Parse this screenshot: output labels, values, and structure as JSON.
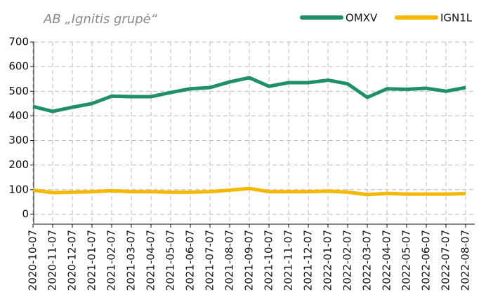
{
  "chart_data": {
    "type": "line",
    "title": "AB „Ignitis grupė“",
    "categories": [
      "2020-10-07",
      "2020-11-07",
      "2020-12-07",
      "2021-01-07",
      "2021-02-07",
      "2021-03-07",
      "2021-04-07",
      "2021-05-07",
      "2021-06-07",
      "2021-07-07",
      "2021-08-07",
      "2021-09-07",
      "2021-10-07",
      "2021-11-07",
      "2021-12-07",
      "2022-01-07",
      "2022-02-07",
      "2022-03-07",
      "2022-04-07",
      "2022-05-07",
      "2022-06-07",
      "2022-07-07",
      "2022-08-07"
    ],
    "series": [
      {
        "name": "OMXV",
        "color": "#1f8f6a",
        "values": [
          438,
          418,
          435,
          450,
          480,
          478,
          478,
          495,
          510,
          515,
          538,
          555,
          520,
          535,
          535,
          545,
          530,
          475,
          510,
          508,
          512,
          500,
          515
        ]
      },
      {
        "name": "IGN1L",
        "color": "#f5b800",
        "values": [
          98,
          88,
          90,
          92,
          96,
          92,
          92,
          90,
          90,
          92,
          98,
          105,
          92,
          92,
          92,
          94,
          90,
          80,
          85,
          82,
          82,
          82,
          84
        ]
      }
    ],
    "ylim": [
      -40,
      700
    ],
    "yticks": [
      0,
      100,
      200,
      300,
      400,
      500,
      600,
      700
    ],
    "grid": true,
    "legend": "top-right"
  }
}
